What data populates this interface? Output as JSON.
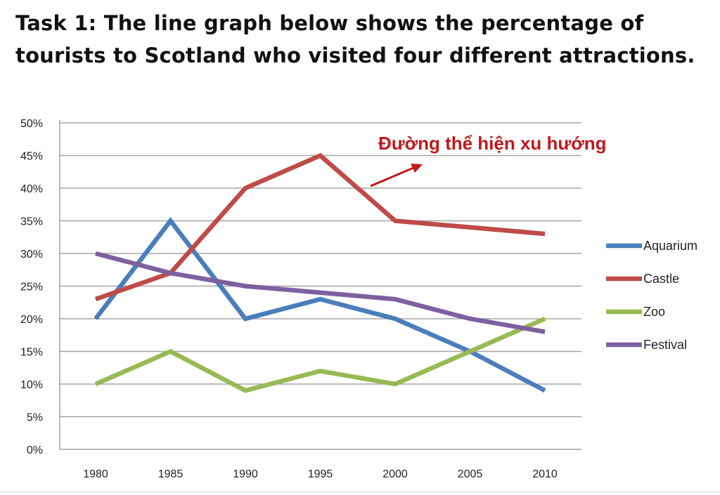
{
  "heading": {
    "line1": "Task 1: The line graph below shows the percentage of",
    "line2": "tourists to Scotland who visited four different attractions."
  },
  "chart_data": {
    "type": "line",
    "x": [
      1980,
      1985,
      1990,
      1995,
      2000,
      2005,
      2010
    ],
    "categories": [
      "1980",
      "1985",
      "1990",
      "1995",
      "2000",
      "2005",
      "2010"
    ],
    "y_ticks": [
      "0%",
      "5%",
      "10%",
      "15%",
      "20%",
      "25%",
      "30%",
      "35%",
      "40%",
      "45%",
      "50%"
    ],
    "ylim": [
      0,
      50
    ],
    "y_unit": "%",
    "grid": "horizontal",
    "legend_placement": "right",
    "series": [
      {
        "name": "Aquarium",
        "color": "#4a7ebb",
        "values": [
          20,
          35,
          20,
          23,
          20,
          15,
          9
        ]
      },
      {
        "name": "Castle",
        "color": "#be4b48",
        "values": [
          23,
          27,
          40,
          45,
          35,
          34,
          33
        ]
      },
      {
        "name": "Zoo",
        "color": "#98b954",
        "values": [
          10,
          15,
          9,
          12,
          10,
          15,
          20
        ]
      },
      {
        "name": "Festival",
        "color": "#7d60a0",
        "values": [
          30,
          27,
          25,
          24,
          23,
          20,
          18
        ]
      }
    ],
    "annotation": {
      "text": "Đường thể hiện xu hướng",
      "color": "#c0191c"
    }
  }
}
